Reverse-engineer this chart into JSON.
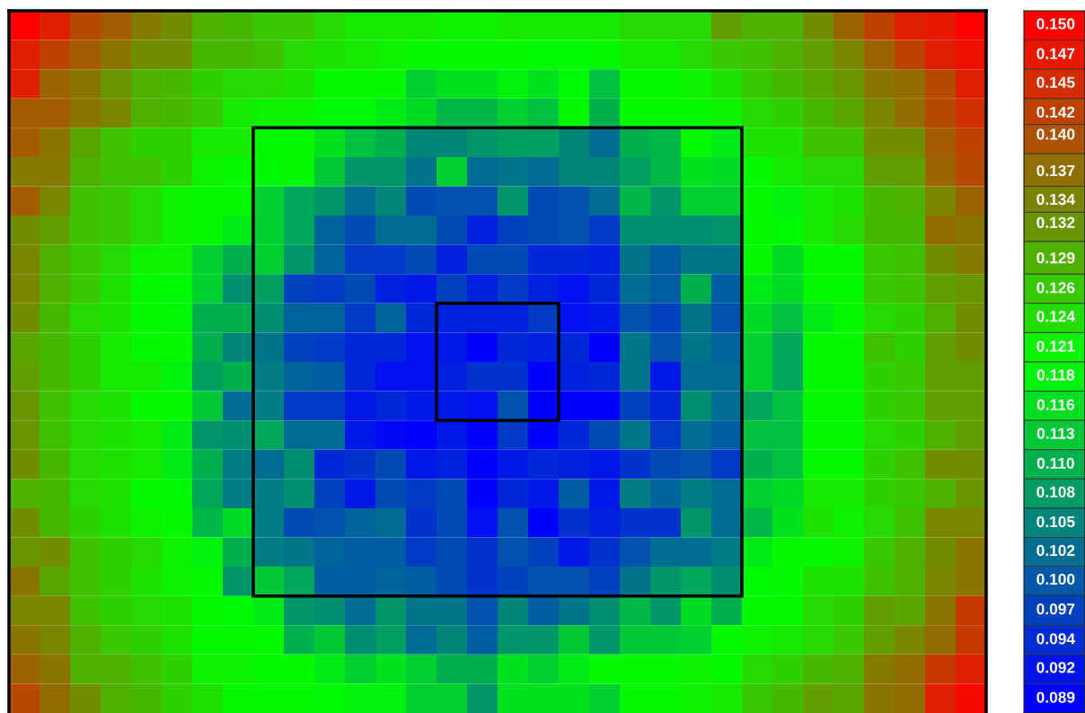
{
  "chart_data": {
    "type": "heatmap",
    "tick_labels": false,
    "categories": [
      null,
      null,
      null,
      null,
      null,
      null,
      null,
      null,
      null,
      null,
      null,
      null,
      null,
      null,
      null,
      null,
      null,
      null,
      null,
      null,
      null,
      null,
      null,
      null,
      null,
      null,
      null,
      null,
      null,
      null,
      null,
      null
    ],
    "y_categories": [
      null,
      null,
      null,
      null,
      null,
      null,
      null,
      null,
      null,
      null,
      null,
      null,
      null,
      null,
      null,
      null,
      null,
      null,
      null,
      null,
      null,
      null,
      null,
      null
    ],
    "clim": [
      0.0877,
      0.1513
    ],
    "cticks": [
      {
        "value": 0.15,
        "label": "0.150"
      },
      {
        "value": 0.1473,
        "label": "0.147"
      },
      {
        "value": 0.1447,
        "label": "0.145"
      },
      {
        "value": 0.142,
        "label": "0.142"
      },
      {
        "value": 0.14,
        "label": "0.140"
      },
      {
        "value": 0.1367,
        "label": "0.137"
      },
      {
        "value": 0.1341,
        "label": "0.134"
      },
      {
        "value": 0.132,
        "label": "0.132"
      },
      {
        "value": 0.1288,
        "label": "0.129"
      },
      {
        "value": 0.1261,
        "label": "0.126"
      },
      {
        "value": 0.1235,
        "label": "0.124"
      },
      {
        "value": 0.1208,
        "label": "0.121"
      },
      {
        "value": 0.1182,
        "label": "0.118"
      },
      {
        "value": 0.1155,
        "label": "0.116"
      },
      {
        "value": 0.1129,
        "label": "0.113"
      },
      {
        "value": 0.1102,
        "label": "0.110"
      },
      {
        "value": 0.1076,
        "label": "0.108"
      },
      {
        "value": 0.1049,
        "label": "0.105"
      },
      {
        "value": 0.1023,
        "label": "0.102"
      },
      {
        "value": 0.0997,
        "label": "0.100"
      },
      {
        "value": 0.097,
        "label": "0.097"
      },
      {
        "value": 0.0943,
        "label": "0.094"
      },
      {
        "value": 0.0917,
        "label": "0.092"
      },
      {
        "value": 0.089,
        "label": "0.089"
      }
    ],
    "cells": [
      [
        0.15,
        0.146,
        0.141,
        0.139,
        0.135,
        0.133,
        0.129,
        0.128,
        0.126,
        0.126,
        0.124,
        0.122,
        0.122,
        0.122,
        0.121,
        0.121,
        0.122,
        0.122,
        0.122,
        0.122,
        0.124,
        0.124,
        0.124,
        0.131,
        0.129,
        0.129,
        0.133,
        0.138,
        0.142,
        0.146,
        0.147,
        0.15
      ],
      [
        0.146,
        0.142,
        0.139,
        0.136,
        0.133,
        0.133,
        0.128,
        0.128,
        0.127,
        0.124,
        0.123,
        0.122,
        0.121,
        0.12,
        0.12,
        0.12,
        0.12,
        0.119,
        0.119,
        0.12,
        0.122,
        0.122,
        0.124,
        0.126,
        0.127,
        0.129,
        0.131,
        0.134,
        0.138,
        0.142,
        0.146,
        0.148
      ],
      [
        0.146,
        0.138,
        0.136,
        0.132,
        0.129,
        0.128,
        0.125,
        0.124,
        0.124,
        0.123,
        0.12,
        0.12,
        0.12,
        0.114,
        0.116,
        0.116,
        0.118,
        0.116,
        0.119,
        0.112,
        0.12,
        0.12,
        0.121,
        0.123,
        0.126,
        0.128,
        0.13,
        0.132,
        0.136,
        0.137,
        0.141,
        0.146
      ],
      [
        0.139,
        0.139,
        0.136,
        0.134,
        0.129,
        0.128,
        0.126,
        0.122,
        0.121,
        0.121,
        0.119,
        0.119,
        0.117,
        0.115,
        0.111,
        0.111,
        0.114,
        0.112,
        0.12,
        0.11,
        0.12,
        0.12,
        0.12,
        0.121,
        0.124,
        0.125,
        0.128,
        0.13,
        0.134,
        0.137,
        0.141,
        0.144
      ],
      [
        0.139,
        0.136,
        0.13,
        0.127,
        0.125,
        0.125,
        0.122,
        0.122,
        0.12,
        0.12,
        0.116,
        0.112,
        0.11,
        0.105,
        0.105,
        0.107,
        0.108,
        0.108,
        0.105,
        0.102,
        0.11,
        0.111,
        0.12,
        0.117,
        0.123,
        0.123,
        0.127,
        0.127,
        0.133,
        0.133,
        0.139,
        0.142
      ],
      [
        0.135,
        0.135,
        0.129,
        0.127,
        0.127,
        0.125,
        0.121,
        0.12,
        0.119,
        0.12,
        0.113,
        0.107,
        0.107,
        0.103,
        0.114,
        0.102,
        0.103,
        0.102,
        0.105,
        0.105,
        0.108,
        0.111,
        0.116,
        0.115,
        0.12,
        0.122,
        0.124,
        0.124,
        0.131,
        0.131,
        0.138,
        0.141
      ],
      [
        0.139,
        0.134,
        0.127,
        0.126,
        0.124,
        0.121,
        0.12,
        0.12,
        0.114,
        0.109,
        0.107,
        0.102,
        0.105,
        0.098,
        0.099,
        0.099,
        0.107,
        0.098,
        0.099,
        0.102,
        0.111,
        0.107,
        0.114,
        0.114,
        0.12,
        0.118,
        0.122,
        0.123,
        0.128,
        0.129,
        0.134,
        0.138
      ],
      [
        0.133,
        0.131,
        0.127,
        0.126,
        0.124,
        0.121,
        0.12,
        0.117,
        0.114,
        0.109,
        0.101,
        0.098,
        0.102,
        0.102,
        0.098,
        0.093,
        0.097,
        0.098,
        0.099,
        0.096,
        0.106,
        0.106,
        0.106,
        0.107,
        0.12,
        0.119,
        0.122,
        0.124,
        0.128,
        0.128,
        0.137,
        0.136
      ],
      [
        0.134,
        0.129,
        0.126,
        0.124,
        0.121,
        0.121,
        0.114,
        0.11,
        0.114,
        0.107,
        0.101,
        0.096,
        0.096,
        0.098,
        0.093,
        0.098,
        0.098,
        0.094,
        0.094,
        0.093,
        0.103,
        0.1,
        0.103,
        0.103,
        0.12,
        0.115,
        0.12,
        0.12,
        0.126,
        0.127,
        0.133,
        0.135
      ],
      [
        0.134,
        0.129,
        0.126,
        0.123,
        0.12,
        0.119,
        0.114,
        0.106,
        0.108,
        0.097,
        0.096,
        0.098,
        0.093,
        0.092,
        0.097,
        0.093,
        0.096,
        0.093,
        0.091,
        0.094,
        0.102,
        0.1,
        0.11,
        0.1,
        0.117,
        0.115,
        0.12,
        0.12,
        0.126,
        0.127,
        0.131,
        0.132
      ],
      [
        0.133,
        0.128,
        0.124,
        0.123,
        0.12,
        0.119,
        0.11,
        0.11,
        0.106,
        0.101,
        0.101,
        0.096,
        0.101,
        0.094,
        0.093,
        0.093,
        0.093,
        0.096,
        0.091,
        0.092,
        0.099,
        0.097,
        0.103,
        0.099,
        0.115,
        0.112,
        0.117,
        0.12,
        0.124,
        0.125,
        0.129,
        0.133
      ],
      [
        0.13,
        0.128,
        0.125,
        0.122,
        0.12,
        0.12,
        0.11,
        0.105,
        0.103,
        0.097,
        0.096,
        0.094,
        0.094,
        0.091,
        0.092,
        0.089,
        0.094,
        0.093,
        0.094,
        0.089,
        0.103,
        0.099,
        0.103,
        0.101,
        0.114,
        0.109,
        0.12,
        0.12,
        0.127,
        0.125,
        0.131,
        0.133
      ],
      [
        0.131,
        0.128,
        0.125,
        0.122,
        0.122,
        0.118,
        0.108,
        0.11,
        0.104,
        0.101,
        0.1,
        0.094,
        0.091,
        0.091,
        0.093,
        0.095,
        0.095,
        0.089,
        0.093,
        0.094,
        0.103,
        0.092,
        0.102,
        0.102,
        0.114,
        0.109,
        0.12,
        0.12,
        0.125,
        0.126,
        0.131,
        0.131
      ],
      [
        0.132,
        0.127,
        0.124,
        0.123,
        0.12,
        0.12,
        0.113,
        0.102,
        0.104,
        0.096,
        0.096,
        0.092,
        0.094,
        0.092,
        0.092,
        0.091,
        0.099,
        0.089,
        0.089,
        0.089,
        0.097,
        0.094,
        0.106,
        0.102,
        0.109,
        0.112,
        0.12,
        0.12,
        0.125,
        0.126,
        0.131,
        0.131
      ],
      [
        0.132,
        0.127,
        0.124,
        0.123,
        0.122,
        0.117,
        0.107,
        0.106,
        0.109,
        0.102,
        0.102,
        0.092,
        0.09,
        0.089,
        0.092,
        0.089,
        0.096,
        0.089,
        0.094,
        0.098,
        0.103,
        0.096,
        0.102,
        0.1,
        0.112,
        0.112,
        0.12,
        0.12,
        0.124,
        0.125,
        0.129,
        0.131
      ],
      [
        0.133,
        0.128,
        0.124,
        0.123,
        0.122,
        0.117,
        0.11,
        0.104,
        0.102,
        0.106,
        0.094,
        0.095,
        0.098,
        0.092,
        0.093,
        0.089,
        0.092,
        0.094,
        0.093,
        0.092,
        0.095,
        0.098,
        0.099,
        0.096,
        0.11,
        0.112,
        0.12,
        0.12,
        0.125,
        0.127,
        0.133,
        0.133
      ],
      [
        0.129,
        0.128,
        0.124,
        0.123,
        0.12,
        0.119,
        0.109,
        0.104,
        0.104,
        0.106,
        0.097,
        0.092,
        0.098,
        0.096,
        0.098,
        0.089,
        0.094,
        0.092,
        0.1,
        0.092,
        0.104,
        0.101,
        0.104,
        0.102,
        0.114,
        0.115,
        0.122,
        0.122,
        0.125,
        0.126,
        0.129,
        0.132
      ],
      [
        0.133,
        0.128,
        0.125,
        0.123,
        0.121,
        0.12,
        0.111,
        0.115,
        0.104,
        0.098,
        0.099,
        0.101,
        0.102,
        0.095,
        0.098,
        0.091,
        0.099,
        0.089,
        0.095,
        0.093,
        0.095,
        0.095,
        0.107,
        0.102,
        0.111,
        0.116,
        0.123,
        0.121,
        0.124,
        0.127,
        0.134,
        0.134
      ],
      [
        0.132,
        0.133,
        0.127,
        0.125,
        0.124,
        0.121,
        0.118,
        0.11,
        0.104,
        0.103,
        0.101,
        0.1,
        0.1,
        0.096,
        0.098,
        0.095,
        0.099,
        0.097,
        0.092,
        0.095,
        0.099,
        0.102,
        0.102,
        0.104,
        0.117,
        0.12,
        0.12,
        0.121,
        0.126,
        0.129,
        0.133,
        0.136
      ],
      [
        0.136,
        0.13,
        0.127,
        0.125,
        0.123,
        0.121,
        0.12,
        0.107,
        0.113,
        0.109,
        0.1,
        0.1,
        0.101,
        0.1,
        0.098,
        0.095,
        0.097,
        0.099,
        0.099,
        0.097,
        0.103,
        0.107,
        0.109,
        0.106,
        0.119,
        0.12,
        0.123,
        0.123,
        0.127,
        0.129,
        0.134,
        0.136
      ],
      [
        0.134,
        0.134,
        0.127,
        0.125,
        0.124,
        0.123,
        0.12,
        0.119,
        0.117,
        0.107,
        0.106,
        0.102,
        0.107,
        0.103,
        0.103,
        0.099,
        0.105,
        0.1,
        0.103,
        0.106,
        0.111,
        0.107,
        0.115,
        0.11,
        0.12,
        0.12,
        0.124,
        0.125,
        0.131,
        0.13,
        0.136,
        0.143
      ],
      [
        0.136,
        0.134,
        0.129,
        0.126,
        0.125,
        0.123,
        0.12,
        0.12,
        0.12,
        0.11,
        0.113,
        0.106,
        0.108,
        0.102,
        0.105,
        0.1,
        0.107,
        0.107,
        0.113,
        0.107,
        0.113,
        0.113,
        0.114,
        0.12,
        0.121,
        0.122,
        0.124,
        0.126,
        0.131,
        0.134,
        0.137,
        0.143
      ],
      [
        0.138,
        0.136,
        0.129,
        0.129,
        0.127,
        0.125,
        0.121,
        0.121,
        0.12,
        0.12,
        0.117,
        0.114,
        0.116,
        0.114,
        0.11,
        0.11,
        0.116,
        0.114,
        0.117,
        0.12,
        0.12,
        0.12,
        0.121,
        0.12,
        0.124,
        0.125,
        0.128,
        0.129,
        0.135,
        0.137,
        0.143,
        0.146
      ],
      [
        0.141,
        0.137,
        0.133,
        0.129,
        0.128,
        0.125,
        0.123,
        0.12,
        0.12,
        0.12,
        0.119,
        0.118,
        0.118,
        0.114,
        0.114,
        0.107,
        0.116,
        0.116,
        0.116,
        0.114,
        0.12,
        0.12,
        0.121,
        0.122,
        0.126,
        0.128,
        0.131,
        0.13,
        0.136,
        0.137,
        0.146,
        0.149
      ]
    ]
  }
}
